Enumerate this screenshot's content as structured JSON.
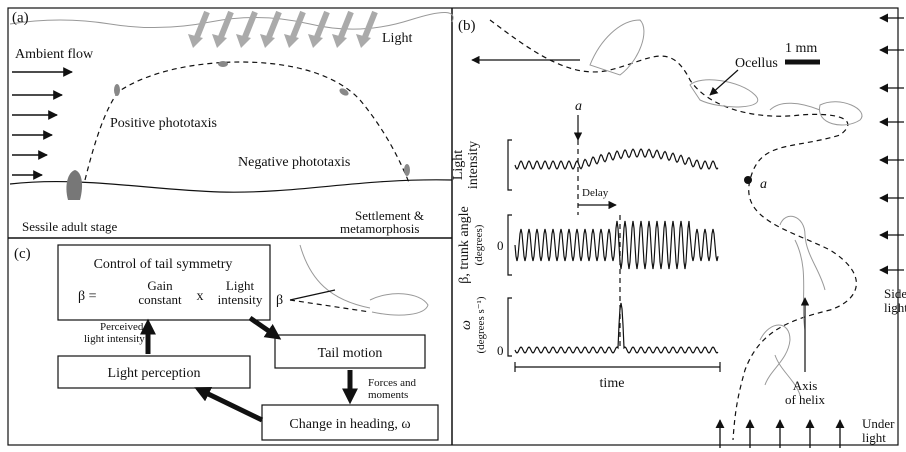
{
  "panel_a": {
    "label": "(a)",
    "ambient_flow": "Ambient flow",
    "light": "Light",
    "positive_phototaxis": "Positive phototaxis",
    "negative_phototaxis": "Negative phototaxis",
    "sessile_adult": "Sessile adult stage",
    "settlement": [
      "Settlement &",
      "metamorphosis"
    ]
  },
  "panel_b": {
    "label": "(b)",
    "scale": "1 mm",
    "ocellus": "Ocellus",
    "marker_top": "a",
    "marker_path": "a",
    "light_intensity_axis": [
      "Light",
      "intensity"
    ],
    "delay": "Delay",
    "trunk_angle_axis": [
      "β, trunk angle",
      "(degrees)"
    ],
    "trunk_zero": "0",
    "omega_axis": [
      "ω",
      "(degrees s⁻¹)"
    ],
    "omega_zero": "0",
    "time": "time",
    "axis_of_helix": [
      "Axis",
      "of helix"
    ],
    "side_light": [
      "Side",
      "light"
    ],
    "under_light": [
      "Under",
      "light"
    ]
  },
  "panel_c": {
    "label": "(c)",
    "control": "Control of tail symmetry",
    "beta_eq": "β =",
    "gain": [
      "Gain",
      "constant"
    ],
    "times": "x",
    "light_intensity": [
      "Light",
      "intensity"
    ],
    "beta": "β",
    "tail_motion": "Tail motion",
    "forces": [
      "Forces and",
      "moments"
    ],
    "change_heading": "Change in heading, ω",
    "light_perception": "Light perception",
    "perceived": [
      "Perceived",
      "light intensity"
    ]
  }
}
